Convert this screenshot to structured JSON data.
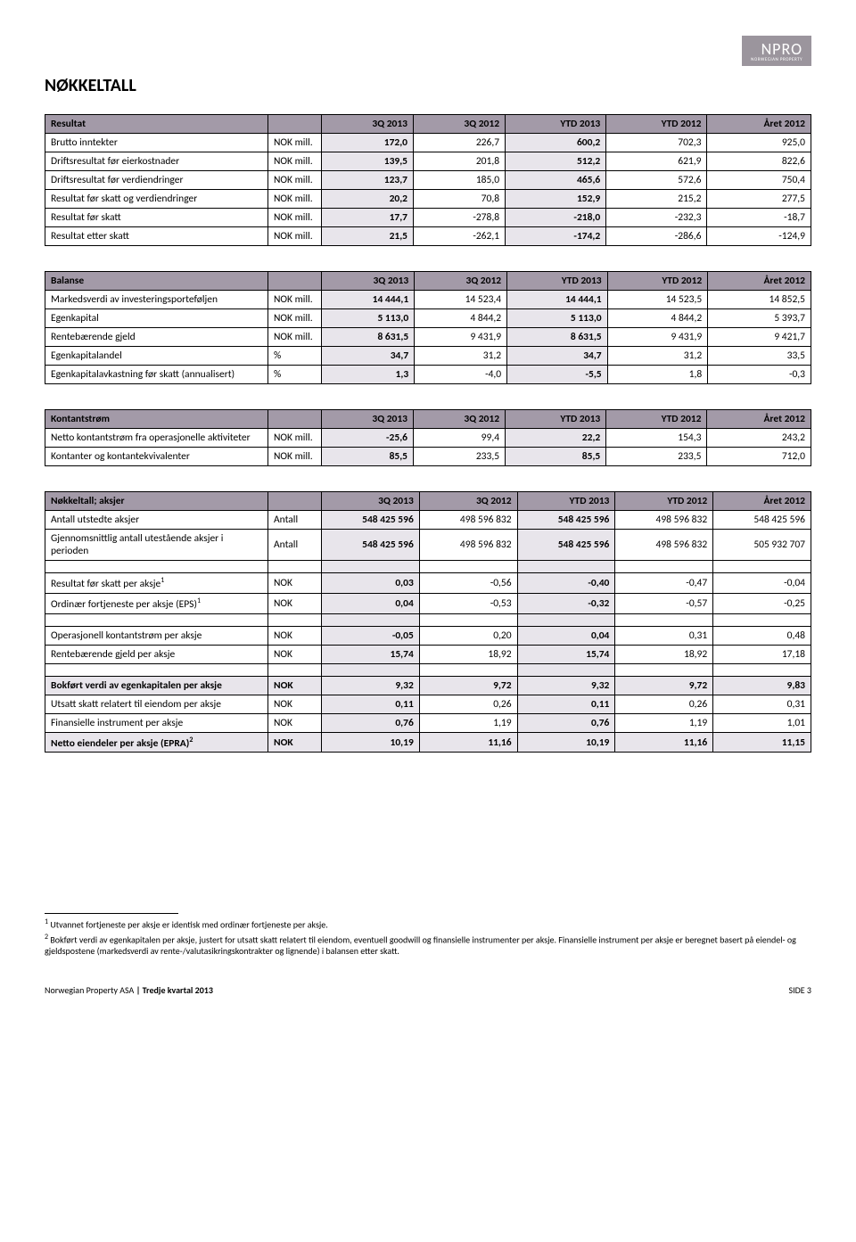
{
  "logo": {
    "main": "NPRO",
    "sub": "NORWEGIAN PROPERTY"
  },
  "page_title": "NØKKELTALL",
  "headers": [
    "3Q 2013",
    "3Q 2012",
    "YTD 2013",
    "YTD 2012",
    "Året 2012"
  ],
  "tables": {
    "resultat": {
      "title": "Resultat",
      "rows": [
        {
          "l": "Brutto inntekter",
          "u": "NOK mill.",
          "v": [
            "172,0",
            "226,7",
            "600,2",
            "702,3",
            "925,0"
          ]
        },
        {
          "l": "Driftsresultat før eierkostnader",
          "u": "NOK mill.",
          "v": [
            "139,5",
            "201,8",
            "512,2",
            "621,9",
            "822,6"
          ]
        },
        {
          "l": "Driftsresultat før verdiendringer",
          "u": "NOK mill.",
          "v": [
            "123,7",
            "185,0",
            "465,6",
            "572,6",
            "750,4"
          ]
        },
        {
          "l": "Resultat før skatt og verdiendringer",
          "u": "NOK mill.",
          "v": [
            "20,2",
            "70,8",
            "152,9",
            "215,2",
            "277,5"
          ]
        },
        {
          "l": "Resultat før skatt",
          "u": "NOK mill.",
          "v": [
            "17,7",
            "-278,8",
            "-218,0",
            "-232,3",
            "-18,7"
          ]
        },
        {
          "l": "Resultat etter skatt",
          "u": "NOK mill.",
          "v": [
            "21,5",
            "-262,1",
            "-174,2",
            "-286,6",
            "-124,9"
          ]
        }
      ]
    },
    "balanse": {
      "title": "Balanse",
      "rows": [
        {
          "l": "Markedsverdi av investeringsporteføljen",
          "u": "NOK mill.",
          "v": [
            "14 444,1",
            "14 523,4",
            "14 444,1",
            "14 523,5",
            "14 852,5"
          ]
        },
        {
          "l": "Egenkapital",
          "u": "NOK mill.",
          "v": [
            "5 113,0",
            "4 844,2",
            "5 113,0",
            "4 844,2",
            "5 393,7"
          ]
        },
        {
          "l": "Rentebærende gjeld",
          "u": "NOK mill.",
          "v": [
            "8 631,5",
            "9 431,9",
            "8 631,5",
            "9 431,9",
            "9 421,7"
          ]
        },
        {
          "l": "Egenkapitalandel",
          "u": "%",
          "v": [
            "34,7",
            "31,2",
            "34,7",
            "31,2",
            "33,5"
          ]
        },
        {
          "l": "Egenkapitalavkastning før skatt (annualisert)",
          "u": "%",
          "v": [
            "1,3",
            "-4,0",
            "-5,5",
            "1,8",
            "-0,3"
          ]
        }
      ]
    },
    "kontant": {
      "title": "Kontantstrøm",
      "rows": [
        {
          "l": "Netto kontantstrøm fra operasjonelle aktiviteter",
          "u": "NOK mill.",
          "v": [
            "-25,6",
            "99,4",
            "22,2",
            "154,3",
            "243,2"
          ]
        },
        {
          "l": "Kontanter og kontantekvivalenter",
          "u": "NOK mill.",
          "v": [
            "85,5",
            "233,5",
            "85,5",
            "233,5",
            "712,0"
          ]
        }
      ]
    },
    "aksjer": {
      "title": "Nøkkeltall; aksjer",
      "rows": [
        {
          "l": "Antall utstedte aksjer",
          "u": "Antall",
          "v": [
            "548 425 596",
            "498 596 832",
            "548 425 596",
            "498 596 832",
            "548 425 596"
          ]
        },
        {
          "l": "Gjennomsnittlig antall utestående aksjer i perioden",
          "u": "Antall",
          "v": [
            "548 425 596",
            "498 596 832",
            "548 425 596",
            "498 596 832",
            "505 932 707"
          ]
        },
        {
          "spacer": true
        },
        {
          "l": "Resultat før skatt per aksje",
          "sup": "1",
          "u": "NOK",
          "v": [
            "0,03",
            "-0,56",
            "-0,40",
            "-0,47",
            "-0,04"
          ]
        },
        {
          "l": "Ordinær fortjeneste per aksje (EPS)",
          "sup": "1",
          "u": "NOK",
          "v": [
            "0,04",
            "-0,53",
            "-0,32",
            "-0,57",
            "-0,25"
          ]
        },
        {
          "spacer": true
        },
        {
          "l": "Operasjonell kontantstrøm per aksje",
          "u": "NOK",
          "v": [
            "-0,05",
            "0,20",
            "0,04",
            "0,31",
            "0,48"
          ]
        },
        {
          "l": "Rentebærende gjeld per aksje",
          "u": "NOK",
          "v": [
            "15,74",
            "18,92",
            "15,74",
            "18,92",
            "17,18"
          ]
        },
        {
          "spacer": true
        },
        {
          "l": "Bokført verdi av egenkapitalen per aksje",
          "u": "NOK",
          "v": [
            "9,32",
            "9,72",
            "9,32",
            "9,72",
            "9,83"
          ],
          "bold": true,
          "hl": true
        },
        {
          "l": "Utsatt skatt relatert til eiendom per aksje",
          "u": "NOK",
          "v": [
            "0,11",
            "0,26",
            "0,11",
            "0,26",
            "0,31"
          ]
        },
        {
          "l": "Finansielle instrument per aksje",
          "u": "NOK",
          "v": [
            "0,76",
            "1,19",
            "0,76",
            "1,19",
            "1,01"
          ]
        },
        {
          "l": "Netto eiendeler per aksje (EPRA)",
          "sup": "2",
          "u": "NOK",
          "v": [
            "10,19",
            "11,16",
            "10,19",
            "11,16",
            "11,15"
          ],
          "bold": true,
          "hl": true
        }
      ]
    }
  },
  "footnotes": [
    "Utvannet fortjeneste per aksje er identisk med ordinær fortjeneste per aksje.",
    "Bokført verdi av egenkapitalen per aksje, justert for utsatt skatt relatert til eiendom, eventuell goodwill og finansielle instrumenter per aksje. Finansielle instrument per aksje er beregnet basert på eiendel- og gjeldspostene (markedsverdi av rente-/valutasikringskontrakter og lignende) i balansen etter skatt."
  ],
  "footer": {
    "left_company": "Norwegian Property ASA",
    "left_sep": " | ",
    "left_report": "Tredje kvartal 2013",
    "right": "SIDE 3"
  }
}
